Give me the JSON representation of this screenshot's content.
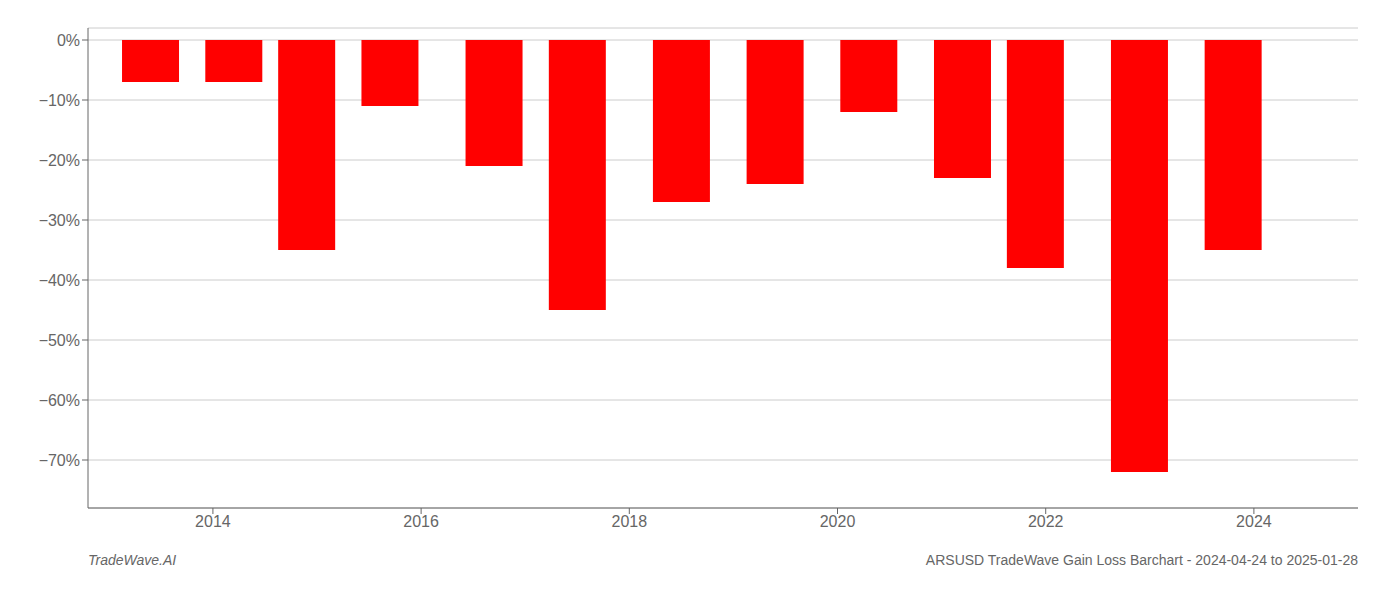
{
  "chart_data": {
    "type": "bar",
    "x": [
      2013.4,
      2014.2,
      2014.9,
      2015.7,
      2016.7,
      2017.5,
      2018.5,
      2019.4,
      2020.3,
      2021.2,
      2021.9,
      2022.9,
      2023.8
    ],
    "values": [
      -0.07,
      -0.07,
      -0.35,
      -0.11,
      -0.21,
      -0.45,
      -0.27,
      -0.24,
      -0.12,
      -0.23,
      -0.38,
      -0.72,
      -0.35
    ],
    "color": "#ff0000",
    "xlim": [
      2012.8,
      2025.0
    ],
    "xticks": [
      2014,
      2016,
      2018,
      2020,
      2022,
      2024
    ],
    "ylim": [
      -0.78,
      0.02
    ],
    "yticks": [
      {
        "value": 0.0,
        "label": "0%"
      },
      {
        "value": -0.1,
        "label": "−10%"
      },
      {
        "value": -0.2,
        "label": "−20%"
      },
      {
        "value": -0.3,
        "label": "−30%"
      },
      {
        "value": -0.4,
        "label": "−40%"
      },
      {
        "value": -0.5,
        "label": "−50%"
      },
      {
        "value": -0.6,
        "label": "−60%"
      },
      {
        "value": -0.7,
        "label": "−70%"
      }
    ],
    "grid": true,
    "annotations": [
      "TradeWave.AI",
      "ARSUSD TradeWave Gain Loss Barchart - 2024-04-24 to 2025-01-28"
    ]
  }
}
